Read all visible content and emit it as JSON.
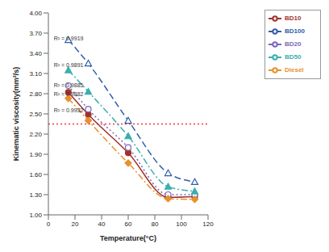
{
  "chart_data": {
    "type": "line",
    "x_label": "Temperature(°C)",
    "y_label": "Kinematic viscosity(mm²/s)",
    "x": [
      15,
      30,
      60,
      90,
      110
    ],
    "series": [
      {
        "name": "BD10",
        "color": "#a0322c",
        "line_style": "solid",
        "marker": "circle",
        "values": [
          2.82,
          2.49,
          1.92,
          1.26,
          1.27
        ]
      },
      {
        "name": "BD20",
        "color": "#7a68b8",
        "line_style": "dotted",
        "marker": "circle_open",
        "values": [
          2.92,
          2.57,
          2.0,
          1.3,
          1.3
        ]
      },
      {
        "name": "BD50",
        "color": "#3aaeb0",
        "line_style": "dashdot",
        "marker": "triangle",
        "values": [
          3.15,
          2.83,
          2.17,
          1.42,
          1.35
        ]
      },
      {
        "name": "BD100",
        "color": "#2f5fa6",
        "line_style": "dashed",
        "marker": "triangle_open",
        "values": [
          3.6,
          3.25,
          2.4,
          1.62,
          1.49
        ]
      },
      {
        "name": "Diesel",
        "color": "#e8902c",
        "line_style": "dashdot",
        "marker": "diamond",
        "values": [
          2.73,
          2.4,
          1.77,
          1.24,
          1.23
        ]
      }
    ],
    "xlim": [
      0,
      120
    ],
    "xticks": [
      0,
      20,
      40,
      60,
      80,
      100,
      120
    ],
    "ylim": [
      1,
      4
    ],
    "yticks": [
      {
        "value": 1,
        "label": "1.00"
      },
      {
        "value": 1.3,
        "label": "1.30"
      },
      {
        "value": 1.6,
        "label": "1.60"
      },
      {
        "value": 1.9,
        "label": "1.90"
      },
      {
        "value": 2.2,
        "label": "2.20"
      },
      {
        "value": 2.5,
        "label": "2.50"
      },
      {
        "value": 2.8,
        "label": "2.80"
      },
      {
        "value": 3.1,
        "label": "3.10"
      },
      {
        "value": 3.4,
        "label": "3.40"
      },
      {
        "value": 3.7,
        "label": "3.70"
      },
      {
        "value": 4,
        "label": "4.00"
      }
    ],
    "reference_line": {
      "value": 2.35,
      "color": "#ff3333",
      "line_style": "dotted"
    },
    "annotations": [
      {
        "text": "R² = 0.9919",
        "x": 1,
        "y": 3.62
      },
      {
        "text": "R² = 0.9891",
        "x": 1,
        "y": 3.22
      },
      {
        "text": "R² = 0.9885",
        "x": 1,
        "y": 2.93
      },
      {
        "text": "R² = 0.9882",
        "x": 1,
        "y": 2.79
      },
      {
        "text": "R² = 0.9932",
        "x": 1,
        "y": 2.55
      }
    ],
    "grid": false,
    "legend": "top-right"
  }
}
